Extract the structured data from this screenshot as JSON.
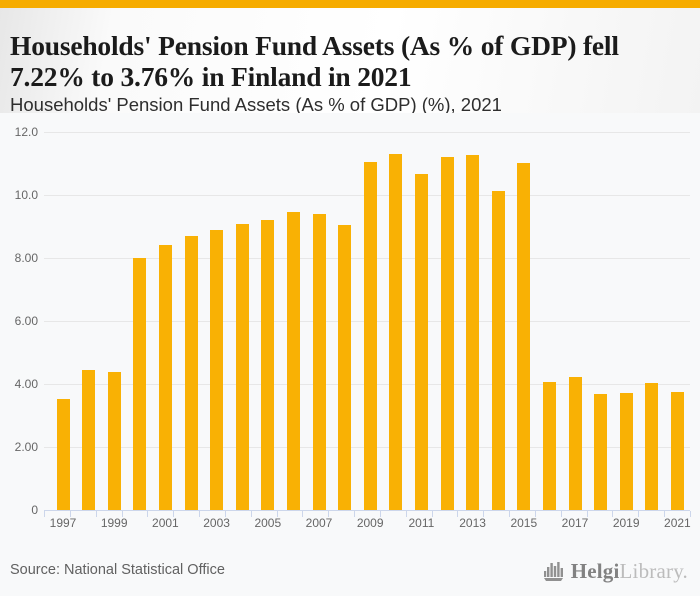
{
  "header": {
    "title_lines": [
      "Households' Pension Fund Assets (As % of GDP) fell",
      "7.22% to 3.76% in Finland in 2021"
    ],
    "subtitle": "Households' Pension Fund Assets (As % of GDP) (%), 2021"
  },
  "footer": {
    "source": "Source: National Statistical Office",
    "logo_primary": "Helgi",
    "logo_secondary": "Library."
  },
  "chart_data": {
    "type": "bar",
    "title": "Households' Pension Fund Assets (As % of GDP) fell 7.22% to 3.76% in Finland in 2021",
    "subtitle": "Households' Pension Fund Assets (As % of GDP) (%), 2021",
    "xlabel": "",
    "ylabel": "",
    "categories": [
      1997,
      1998,
      1999,
      2000,
      2001,
      2002,
      2003,
      2004,
      2005,
      2006,
      2007,
      2008,
      2009,
      2010,
      2011,
      2012,
      2013,
      2014,
      2015,
      2016,
      2017,
      2018,
      2019,
      2020,
      2021
    ],
    "values": [
      3.54,
      4.46,
      4.39,
      8.0,
      8.41,
      8.71,
      8.89,
      9.08,
      9.21,
      9.46,
      9.41,
      9.06,
      11.05,
      11.32,
      10.68,
      11.22,
      11.29,
      10.15,
      11.03,
      4.08,
      4.24,
      3.68,
      3.73,
      4.05,
      3.76
    ],
    "ylim": [
      0,
      12.6
    ],
    "grid": true,
    "legend_position": "none",
    "y_tick_values": [
      12,
      10,
      8,
      6,
      4,
      2,
      0
    ],
    "y_tick_labels": [
      "12.0",
      "10.0",
      "8.00",
      "6.00",
      "4.00",
      "2.00",
      "0"
    ],
    "x_tick_labels": [
      "1997",
      "1999",
      "2001",
      "2003",
      "2005",
      "2007",
      "2009",
      "2011",
      "2013",
      "2015",
      "2017",
      "2019",
      "2021"
    ],
    "bar_color": "#F9B104",
    "background_color": "#f8f9fa",
    "gridline_color": "#e7e7e7",
    "axis_color": "#ccd6eb",
    "label_color": "#666666",
    "accent_color": "#F6AC00"
  }
}
